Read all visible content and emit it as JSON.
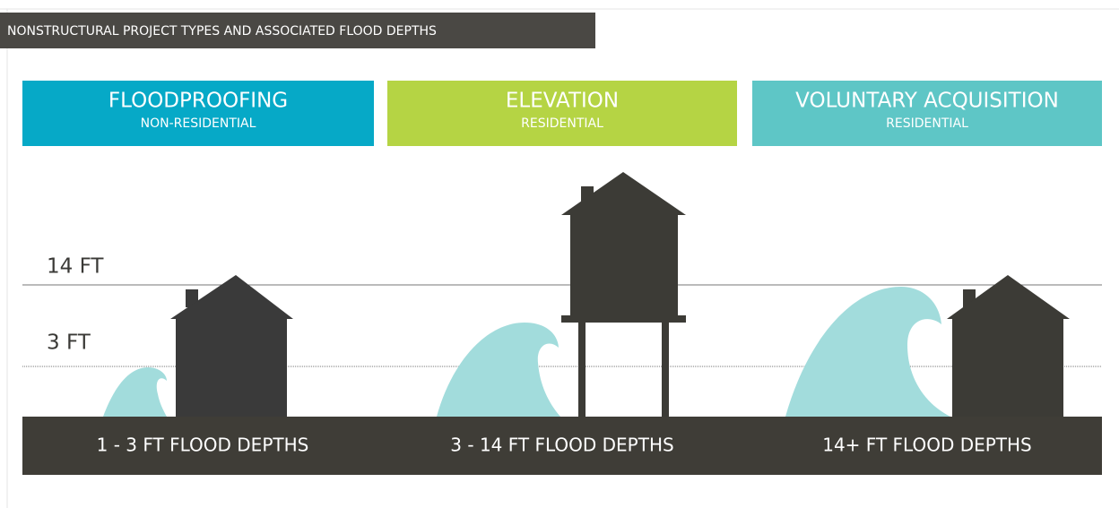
{
  "header": {
    "title": "NONSTRUCTURAL PROJECT TYPES AND ASSOCIATED FLOOD DEPTHS"
  },
  "levels": [
    "14 FT",
    "3 FT"
  ],
  "columns": [
    {
      "title": "FLOODPROOFING",
      "subtitle": "NON-RESIDENTIAL",
      "depth": "1 - 3 FT FLOOD DEPTHS"
    },
    {
      "title": "ELEVATION",
      "subtitle": "RESIDENTIAL",
      "depth": "3 - 14 FT FLOOD DEPTHS"
    },
    {
      "title": "VOLUNTARY ACQUISITION",
      "subtitle": "RESIDENTIAL",
      "depth": "14+ FT FLOOD DEPTHS"
    }
  ]
}
